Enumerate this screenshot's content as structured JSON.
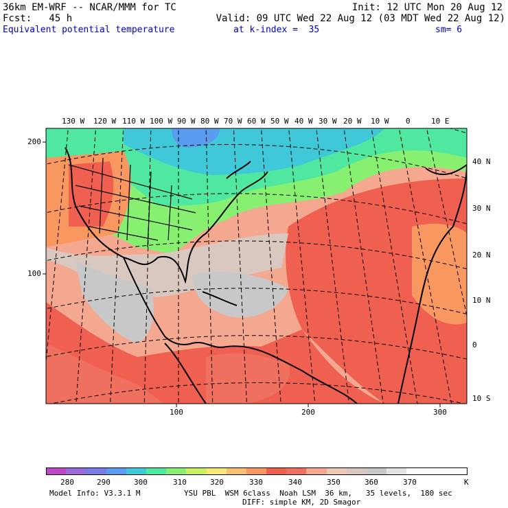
{
  "header": {
    "line1_left": "36km EM-WRF -- NCAR/MMM for TC",
    "line1_right": "Init: 12 UTC Mon 20 Aug 12",
    "line2_left": "Fcst:   45 h",
    "line2_right": "Valid: 09 UTC Wed 22 Aug 12 (03 MDT Wed 22 Aug 12)",
    "field_name": "Equivalent potential temperature",
    "level": "at k-index =  35",
    "smoothing": "sm= 6"
  },
  "map": {
    "top_longitude_labels": [
      "130 W",
      "120 W",
      "110 W",
      "100 W",
      "90 W",
      "80 W",
      "70 W",
      "60 W",
      "50 W",
      "40 W",
      "30 W",
      "20 W",
      "10 W",
      "0",
      "10 E"
    ],
    "right_latitude_labels": [
      "40 N",
      "30 N",
      "20 N",
      "10 N",
      "0",
      "10 S"
    ],
    "left_grid_labels": [
      "200",
      "100"
    ],
    "bottom_grid_labels": [
      "100",
      "200",
      "300"
    ]
  },
  "colorbar": {
    "unit": "K",
    "labels": [
      "280",
      "290",
      "300",
      "310",
      "320",
      "330",
      "340",
      "350",
      "360",
      "370"
    ],
    "colors": [
      "#c048c8",
      "#9a6ad8",
      "#7a7ae8",
      "#5a9cf0",
      "#40c8d8",
      "#50e8a0",
      "#88f070",
      "#c8f060",
      "#f8e878",
      "#f8c070",
      "#f89860",
      "#f06050",
      "#f07060",
      "#f4a890",
      "#f0c8b8",
      "#d8c8c0",
      "#c8c8c8",
      "#e4e4e4",
      "#ffffff",
      "#ffffff",
      "#ffffff"
    ]
  },
  "footer": {
    "model_info": "Model Info: V3.3.1 M",
    "physics": "YSU PBL  WSM 6class  Noah LSM  36 km,   35 levels,  180 sec",
    "diffusion": "DIFF: simple KM, 2D Smagor"
  }
}
